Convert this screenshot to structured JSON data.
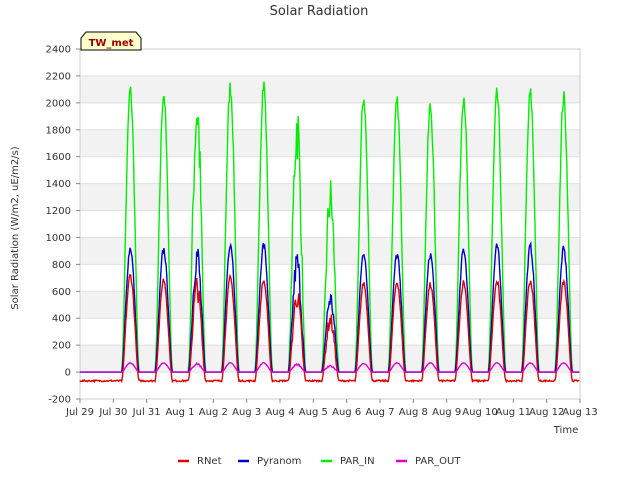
{
  "chart_data": {
    "type": "line",
    "title": "Solar Radiation",
    "xlabel": "Time",
    "ylabel": "Solar Radiation (W/m2, uE/m2/s)",
    "site_label": "TW_met",
    "ylim": [
      -200,
      2400
    ],
    "xlim": [
      "Jul 29",
      "Aug 13"
    ],
    "yticks": [
      -200,
      0,
      200,
      400,
      600,
      800,
      1000,
      1200,
      1400,
      1600,
      1800,
      2000,
      2200,
      2400
    ],
    "xticks": [
      "Jul 29",
      "Jul 30",
      "Jul 31",
      "Aug 1",
      "Aug 2",
      "Aug 3",
      "Aug 4",
      "Aug 5",
      "Aug 6",
      "Aug 7",
      "Aug 8",
      "Aug 9",
      "Aug 10",
      "Aug 11",
      "Aug 12",
      "Aug 13"
    ],
    "grid": "horizontal bands",
    "legend_position": "bottom",
    "days": [
      "Jul 29",
      "Jul 30",
      "Jul 31",
      "Aug 1",
      "Aug 2",
      "Aug 3",
      "Aug 4",
      "Aug 5",
      "Aug 6",
      "Aug 7",
      "Aug 8",
      "Aug 9",
      "Aug 10",
      "Aug 11",
      "Aug 12"
    ],
    "series": [
      {
        "name": "RNet",
        "color": "#dd0000",
        "daily_peak": [
          null,
          740,
          710,
          730,
          720,
          700,
          650,
          450,
          680,
          690,
          670,
          690,
          690,
          700,
          690
        ],
        "night_value": -65
      },
      {
        "name": "Pyranom",
        "color": "#0000cc",
        "daily_peak": [
          null,
          950,
          940,
          990,
          985,
          975,
          920,
          620,
          920,
          900,
          900,
          940,
          960,
          960,
          940
        ],
        "night_value": 0
      },
      {
        "name": "PAR_IN",
        "color": "#00ee00",
        "daily_peak": [
          null,
          2150,
          2130,
          2210,
          2180,
          2200,
          2080,
          1470,
          2100,
          2060,
          2030,
          2120,
          2120,
          2130,
          2100
        ],
        "night_value": 0
      },
      {
        "name": "PAR_OUT",
        "color": "#dd00dd",
        "daily_peak": [
          null,
          70,
          70,
          70,
          70,
          70,
          65,
          50,
          65,
          70,
          70,
          70,
          70,
          70,
          70
        ],
        "night_value": 0
      }
    ]
  }
}
